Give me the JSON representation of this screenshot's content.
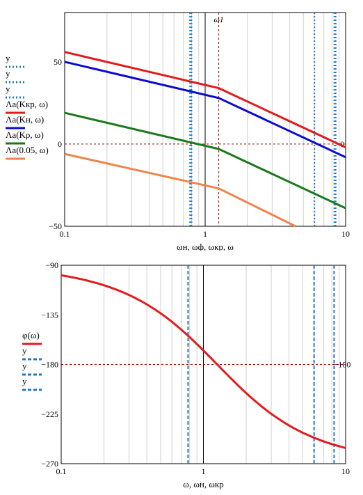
{
  "colors": {
    "red": "#e31a1c",
    "blue": "#0a0ad0",
    "green": "#1a7a1a",
    "orange": "#f0844a",
    "guide_blue": "#1f78c8",
    "ref_red": "#a00000"
  },
  "chart_data": [
    {
      "type": "line",
      "xscale": "log",
      "xlim": [
        0.1,
        10
      ],
      "ylim": [
        -50,
        80
      ],
      "xticks": [
        "0.1",
        "1",
        "10"
      ],
      "yticks": [
        "50",
        "0",
        "−50"
      ],
      "xlabel": "ωн, ωф, ωкр, ω",
      "marker_label": "ω1",
      "hline_label": "0",
      "legend": [
        {
          "text": "y",
          "style": "dotted",
          "color": "guide_blue"
        },
        {
          "text": "y",
          "style": "dotted",
          "color": "guide_blue"
        },
        {
          "text": "y",
          "style": "dotted",
          "color": "guide_blue"
        },
        {
          "text": "Λa(Kкр, ω)",
          "style": "solid",
          "color": "red"
        },
        {
          "text": "Λa(Kн, ω)",
          "style": "solid",
          "color": "blue"
        },
        {
          "text": "Λa(Kρ, ω)",
          "style": "solid",
          "color": "green"
        },
        {
          "text": "Λa(0.05, ω)",
          "style": "solid",
          "color": "orange"
        }
      ],
      "series": [
        {
          "name": "Λa(Kкр, ω)",
          "color": "red",
          "x": [
            0.1,
            1.25,
            10
          ],
          "y": [
            56,
            34,
            -2
          ]
        },
        {
          "name": "Λa(Kн, ω)",
          "color": "blue",
          "x": [
            0.1,
            1.25,
            10
          ],
          "y": [
            50,
            28,
            -8
          ]
        },
        {
          "name": "Λa(Kρ, ω)",
          "color": "green",
          "x": [
            0.1,
            1.25,
            10
          ],
          "y": [
            19,
            -3,
            -39
          ]
        },
        {
          "name": "Λa(0.05, ω)",
          "color": "orange",
          "x": [
            0.1,
            1.25,
            4.4
          ],
          "y": [
            -6,
            -27,
            -50
          ]
        }
      ],
      "vlines_guides": [
        0.78,
        0.8,
        6.0,
        8.3,
        8.5
      ],
      "vline_marker": 1.25,
      "vline_axis": 1,
      "hline_ref": 0
    },
    {
      "type": "line",
      "xscale": "log",
      "xlim": [
        0.1,
        10
      ],
      "ylim": [
        -270,
        -90
      ],
      "xticks": [
        "0.1",
        "1",
        "10"
      ],
      "yticks": [
        "−90",
        "−135",
        "−180",
        "−225",
        "−270"
      ],
      "xlabel": "ω, ωн, ωкр",
      "hline_label": "−180",
      "legend": [
        {
          "text": "φ(ω)",
          "style": "solid",
          "color": "red"
        },
        {
          "text": "y",
          "style": "dashed",
          "color": "guide_blue"
        },
        {
          "text": "y",
          "style": "dashed",
          "color": "guide_blue"
        },
        {
          "text": "y",
          "style": "dashed",
          "color": "guide_blue"
        }
      ],
      "series": [
        {
          "name": "φ(ω)",
          "color": "red",
          "T1": 0.8,
          "T2": 0.8,
          "samples": 120
        }
      ],
      "vlines_guides": [
        0.78,
        6.0,
        8.3
      ],
      "vline_axis": 1,
      "hline_ref": -180
    }
  ]
}
